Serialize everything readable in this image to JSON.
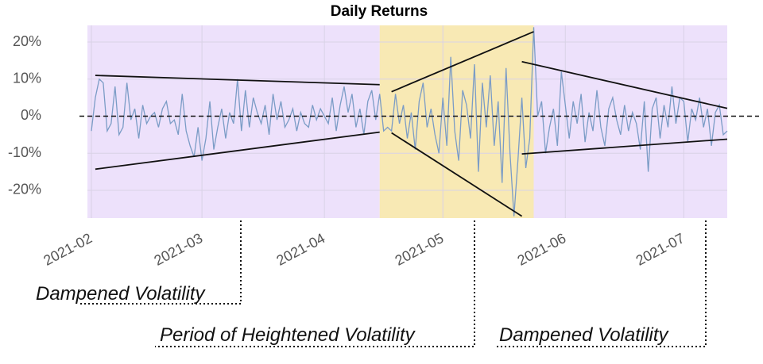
{
  "chart_data": {
    "type": "line",
    "title": "Daily Returns",
    "x": [
      "2021-02-01",
      "2021-02-02",
      "2021-02-03",
      "2021-02-04",
      "2021-02-05",
      "2021-02-06",
      "2021-02-07",
      "2021-02-08",
      "2021-02-09",
      "2021-02-10",
      "2021-02-11",
      "2021-02-12",
      "2021-02-13",
      "2021-02-14",
      "2021-02-15",
      "2021-02-16",
      "2021-02-17",
      "2021-02-18",
      "2021-02-19",
      "2021-02-20",
      "2021-02-21",
      "2021-02-22",
      "2021-02-23",
      "2021-02-24",
      "2021-02-25",
      "2021-02-26",
      "2021-02-27",
      "2021-02-28",
      "2021-03-01",
      "2021-03-02",
      "2021-03-03",
      "2021-03-04",
      "2021-03-05",
      "2021-03-06",
      "2021-03-07",
      "2021-03-08",
      "2021-03-09",
      "2021-03-10",
      "2021-03-11",
      "2021-03-12",
      "2021-03-13",
      "2021-03-14",
      "2021-03-15",
      "2021-03-16",
      "2021-03-17",
      "2021-03-18",
      "2021-03-19",
      "2021-03-20",
      "2021-03-21",
      "2021-03-22",
      "2021-03-23",
      "2021-03-24",
      "2021-03-25",
      "2021-03-26",
      "2021-03-27",
      "2021-03-28",
      "2021-03-29",
      "2021-03-30",
      "2021-03-31",
      "2021-04-01",
      "2021-04-02",
      "2021-04-03",
      "2021-04-04",
      "2021-04-05",
      "2021-04-06",
      "2021-04-07",
      "2021-04-08",
      "2021-04-09",
      "2021-04-10",
      "2021-04-11",
      "2021-04-12",
      "2021-04-13",
      "2021-04-14",
      "2021-04-15",
      "2021-04-16",
      "2021-04-17",
      "2021-04-18",
      "2021-04-19",
      "2021-04-20",
      "2021-04-21",
      "2021-04-22",
      "2021-04-23",
      "2021-04-24",
      "2021-04-25",
      "2021-04-26",
      "2021-04-27",
      "2021-04-28",
      "2021-04-29",
      "2021-04-30",
      "2021-05-01",
      "2021-05-02",
      "2021-05-03",
      "2021-05-04",
      "2021-05-05",
      "2021-05-06",
      "2021-05-07",
      "2021-05-08",
      "2021-05-09",
      "2021-05-10",
      "2021-05-11",
      "2021-05-12",
      "2021-05-13",
      "2021-05-14",
      "2021-05-15",
      "2021-05-16",
      "2021-05-17",
      "2021-05-18",
      "2021-05-19",
      "2021-05-20",
      "2021-05-21",
      "2021-05-22",
      "2021-05-23",
      "2021-05-24",
      "2021-05-25",
      "2021-05-26",
      "2021-05-27",
      "2021-05-28",
      "2021-05-29",
      "2021-05-30",
      "2021-05-31",
      "2021-06-01",
      "2021-06-02",
      "2021-06-03",
      "2021-06-04",
      "2021-06-05",
      "2021-06-06",
      "2021-06-07",
      "2021-06-08",
      "2021-06-09",
      "2021-06-10",
      "2021-06-11",
      "2021-06-12",
      "2021-06-13",
      "2021-06-14",
      "2021-06-15",
      "2021-06-16",
      "2021-06-17",
      "2021-06-18",
      "2021-06-19",
      "2021-06-20",
      "2021-06-21",
      "2021-06-22",
      "2021-06-23",
      "2021-06-24",
      "2021-06-25",
      "2021-06-26",
      "2021-06-27",
      "2021-06-28",
      "2021-06-29",
      "2021-06-30",
      "2021-07-01",
      "2021-07-02",
      "2021-07-03",
      "2021-07-04",
      "2021-07-05",
      "2021-07-06",
      "2021-07-07",
      "2021-07-08",
      "2021-07-09",
      "2021-07-10",
      "2021-07-11",
      "2021-07-12"
    ],
    "series": [
      {
        "color": "#7b9cc6",
        "values": [
          -4,
          5,
          10,
          9,
          -4,
          -2,
          8,
          -5,
          -3,
          9,
          -1,
          2,
          -6,
          3,
          -2,
          0,
          1,
          -3,
          2,
          4,
          -2,
          -1,
          -5,
          6,
          -4,
          -8,
          -11,
          -3,
          -12,
          -6,
          4,
          -9,
          -3,
          2,
          -6,
          1,
          -2,
          10,
          -4,
          7,
          -3,
          5,
          1,
          -2,
          3,
          -5,
          6,
          -1,
          4,
          -3,
          -1,
          2,
          -4,
          1,
          -2,
          -3,
          3,
          -1,
          2,
          0,
          -2,
          5,
          -4,
          3,
          8,
          1,
          6,
          -3,
          2,
          -5,
          4,
          7,
          -1,
          6,
          -4,
          -3,
          -4,
          6,
          -2,
          3,
          -6,
          1,
          -9,
          4,
          9,
          -3,
          2,
          -5,
          -10,
          5,
          -8,
          16,
          -4,
          -12,
          7,
          3,
          -6,
          14,
          -15,
          9,
          -3,
          11,
          -8,
          4,
          -18,
          13,
          -10,
          -27,
          -12,
          5,
          -14,
          -6,
          24,
          0,
          4,
          -10,
          -3,
          2,
          -8,
          12,
          3,
          -6,
          4,
          -2,
          6,
          -7,
          1,
          -4,
          7,
          -3,
          -8,
          2,
          5,
          -1,
          -5,
          3,
          -4,
          1,
          -2,
          -9,
          4,
          -15,
          2,
          5,
          -6,
          3,
          -3,
          8,
          -2,
          5,
          4,
          -7,
          2,
          -1,
          5,
          -3,
          2,
          -8,
          1,
          3,
          -5,
          -4
        ]
      }
    ],
    "xlim": [
      "2021-01-31",
      "2021-07-12"
    ],
    "xticks": [
      {
        "value": "2021-02",
        "label": "2021-02"
      },
      {
        "value": "2021-03",
        "label": "2021-03"
      },
      {
        "value": "2021-04",
        "label": "2021-04"
      },
      {
        "value": "2021-05",
        "label": "2021-05"
      },
      {
        "value": "2021-06",
        "label": "2021-06"
      },
      {
        "value": "2021-07",
        "label": "2021-07"
      }
    ],
    "ylim": [
      -27.5,
      24.5
    ],
    "yticks": [
      {
        "value": -20,
        "label": "-20%"
      },
      {
        "value": -10,
        "label": "-10%"
      },
      {
        "value": 0,
        "label": "0%"
      },
      {
        "value": 10,
        "label": "10%"
      },
      {
        "value": 20,
        "label": "20%"
      }
    ],
    "grid": true,
    "hline": 0,
    "spans": [
      {
        "start": "2021-01-31",
        "end": "2021-04-15",
        "color": "#ede1fb"
      },
      {
        "start": "2021-04-15",
        "end": "2021-05-24",
        "color": "#f8e9b4"
      },
      {
        "start": "2021-05-24",
        "end": "2021-07-12",
        "color": "#ede1fb"
      }
    ],
    "trend_lines": [
      {
        "x": [
          "2021-02-02",
          "2021-04-15"
        ],
        "y": [
          11,
          8.5
        ]
      },
      {
        "x": [
          "2021-02-02",
          "2021-04-15"
        ],
        "y": [
          -14.3,
          -4.3
        ]
      },
      {
        "x": [
          "2021-04-18",
          "2021-05-24"
        ],
        "y": [
          6.6,
          22.8
        ]
      },
      {
        "x": [
          "2021-04-18",
          "2021-05-21"
        ],
        "y": [
          -4.5,
          -27
        ]
      },
      {
        "x": [
          "2021-05-21",
          "2021-07-12"
        ],
        "y": [
          14.7,
          2.1
        ]
      },
      {
        "x": [
          "2021-05-21",
          "2021-07-12"
        ],
        "y": [
          -10.2,
          -6.2
        ]
      }
    ],
    "annotations": [
      "Dampened Volatility",
      "Period of Heightened Volatility",
      "Dampened Volatility"
    ]
  }
}
